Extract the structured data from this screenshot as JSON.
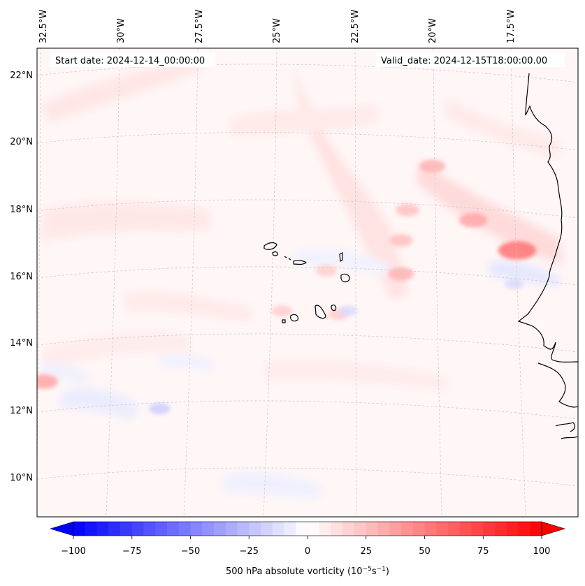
{
  "map": {
    "start_date_label": "Start date: 2024-12-14_00:00:00",
    "valid_date_label": "Valid_date: 2024-12-15T18:00:00.00",
    "lon_labels": [
      "32.5°W",
      "30°W",
      "27.5°W",
      "25°W",
      "22.5°W",
      "20°W",
      "17.5°W"
    ],
    "lat_labels": [
      "22°N",
      "20°N",
      "18°N",
      "16°N",
      "14°N",
      "12°N",
      "10°N"
    ],
    "field": "500 hPa absolute vorticity",
    "vorticity_features": [
      {
        "lon": -17.3,
        "lat": 16.8,
        "value": 55
      },
      {
        "lon": -18.7,
        "lat": 17.7,
        "value": 35
      },
      {
        "lon": -20.0,
        "lat": 19.3,
        "value": 30
      },
      {
        "lon": -21.0,
        "lat": 16.1,
        "value": 30
      },
      {
        "lon": -21.0,
        "lat": 17.1,
        "value": 25
      },
      {
        "lon": -20.8,
        "lat": 18.0,
        "value": 25
      },
      {
        "lon": -32.4,
        "lat": 12.9,
        "value": 35
      },
      {
        "lon": -24.8,
        "lat": 15.0,
        "value": 20
      },
      {
        "lon": -23.0,
        "lat": 14.9,
        "value": 20
      },
      {
        "lon": -23.4,
        "lat": 16.2,
        "value": 20
      },
      {
        "lon": -28.7,
        "lat": 12.1,
        "value": -20
      },
      {
        "lon": -17.4,
        "lat": 15.8,
        "value": -15
      },
      {
        "lon": -22.7,
        "lat": 15.0,
        "value": -15
      }
    ],
    "colors": {
      "negative": "#0000ff",
      "positive": "#ff0000",
      "neutral": "#ffffff"
    }
  },
  "colorbar": {
    "ticks": [
      "−100",
      "−75",
      "−50",
      "−25",
      "0",
      "25",
      "50",
      "75",
      "100"
    ],
    "label_main": "500 hPa absolute vorticity (10",
    "label_exp1": "−5",
    "label_mid": "s",
    "label_exp2": "−1",
    "label_end": ")"
  }
}
